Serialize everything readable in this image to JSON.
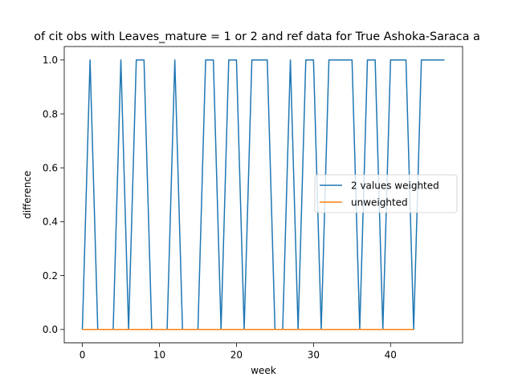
{
  "chart_data": {
    "type": "line",
    "title": "of cit obs with Leaves_mature = 1 or 2 and ref data for True Ashoka-Saraca a",
    "xlabel": "week",
    "ylabel": "difference",
    "xlim": [
      -2.35,
      49.35
    ],
    "ylim": [
      -0.05,
      1.05
    ],
    "xticks": [
      0,
      10,
      20,
      30,
      40
    ],
    "yticks": [
      0.0,
      0.2,
      0.4,
      0.6,
      0.8,
      1.0
    ],
    "xtick_labels": [
      "0",
      "10",
      "20",
      "30",
      "40"
    ],
    "ytick_labels": [
      "0.0",
      "0.2",
      "0.4",
      "0.6",
      "0.8",
      "1.0"
    ],
    "grid": false,
    "legend_position": "center-right",
    "series": [
      {
        "name": "2 values weighted",
        "color": "#1f77b4",
        "x": [
          0,
          1,
          2,
          3,
          4,
          5,
          6,
          7,
          8,
          9,
          10,
          11,
          12,
          13,
          14,
          15,
          16,
          17,
          18,
          19,
          20,
          21,
          22,
          23,
          24,
          25,
          26,
          27,
          28,
          29,
          30,
          31,
          32,
          33,
          34,
          35,
          36,
          37,
          38,
          39,
          40,
          41,
          42,
          43,
          44,
          45,
          46,
          47
        ],
        "y": [
          0,
          1,
          0,
          0,
          0,
          1,
          0,
          1,
          1,
          0,
          0,
          0,
          1,
          0,
          0,
          0,
          1,
          1,
          0,
          1,
          1,
          0,
          1,
          1,
          1,
          0,
          0,
          1,
          0,
          1,
          1,
          0,
          1,
          1,
          1,
          1,
          0,
          1,
          1,
          0,
          1,
          1,
          1,
          0,
          1,
          1,
          1,
          1
        ]
      },
      {
        "name": "unweighted",
        "color": "#ff7f0e",
        "x": [
          0,
          1,
          2,
          3,
          4,
          5,
          6,
          7,
          8,
          9,
          10,
          11,
          12,
          13,
          14,
          15,
          16,
          17,
          18,
          19,
          20,
          21,
          22,
          23,
          24,
          25,
          26,
          27,
          28,
          29,
          30,
          31,
          32,
          33,
          34,
          35,
          36,
          37,
          38,
          39,
          40,
          41,
          42,
          43
        ],
        "y": [
          0,
          0,
          0,
          0,
          0,
          0,
          0,
          0,
          0,
          0,
          0,
          0,
          0,
          0,
          0,
          0,
          0,
          0,
          0,
          0,
          0,
          0,
          0,
          0,
          0,
          0,
          0,
          0,
          0,
          0,
          0,
          0,
          0,
          0,
          0,
          0,
          0,
          0,
          0,
          0,
          0,
          0,
          0,
          0
        ]
      }
    ]
  }
}
